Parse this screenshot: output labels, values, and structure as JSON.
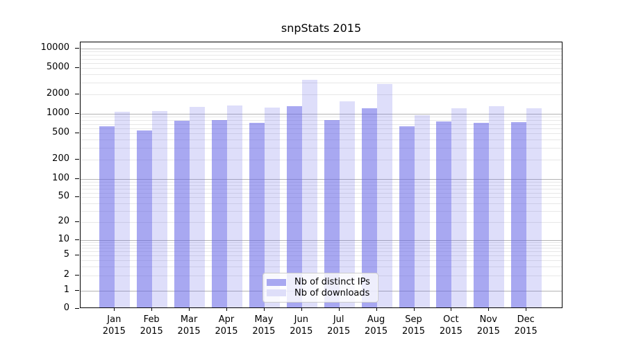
{
  "title": "snpStats 2015",
  "legend": {
    "items": [
      {
        "label": "Nb of distinct IPs",
        "series": "ips"
      },
      {
        "label": "Nb of downloads",
        "series": "downloads"
      }
    ]
  },
  "colors": {
    "ips_fill": "#6464E68F",
    "downloads_fill": "#6464E636",
    "ips_swatch": "#a8a8f1",
    "downloads_swatch": "#dedef9",
    "grid_minor": "#e7e7e7",
    "grid_major": "#b3b3b3",
    "axis": "#000000"
  },
  "y_axis": {
    "tick_labels": [
      "10000",
      "5000",
      "2000",
      "1000",
      "500",
      "200",
      "100",
      "50",
      "20",
      "10",
      "5",
      "2",
      "1",
      "0"
    ]
  },
  "x_axis": {
    "months": [
      {
        "month": "Jan",
        "year": "2015"
      },
      {
        "month": "Feb",
        "year": "2015"
      },
      {
        "month": "Mar",
        "year": "2015"
      },
      {
        "month": "Apr",
        "year": "2015"
      },
      {
        "month": "May",
        "year": "2015"
      },
      {
        "month": "Jun",
        "year": "2015"
      },
      {
        "month": "Jul",
        "year": "2015"
      },
      {
        "month": "Aug",
        "year": "2015"
      },
      {
        "month": "Sep",
        "year": "2015"
      },
      {
        "month": "Oct",
        "year": "2015"
      },
      {
        "month": "Nov",
        "year": "2015"
      },
      {
        "month": "Dec",
        "year": "2015"
      }
    ]
  },
  "chart_data": {
    "type": "bar",
    "title": "snpStats 2015",
    "categories": [
      "Jan 2015",
      "Feb 2015",
      "Mar 2015",
      "Apr 2015",
      "May 2015",
      "Jun 2015",
      "Jul 2015",
      "Aug 2015",
      "Sep 2015",
      "Oct 2015",
      "Nov 2015",
      "Dec 2015"
    ],
    "series": [
      {
        "name": "Nb of distinct IPs",
        "values": [
          640,
          560,
          780,
          800,
          730,
          1310,
          800,
          1220,
          650,
          760,
          730,
          740
        ]
      },
      {
        "name": "Nb of downloads",
        "values": [
          1070,
          1090,
          1280,
          1340,
          1260,
          3350,
          1560,
          2890,
          950,
          1220,
          1300,
          1230
        ]
      }
    ],
    "xlabel": "",
    "ylabel": "",
    "y_scale": "log",
    "ylim": [
      0,
      10000
    ],
    "y_ticks": [
      0,
      1,
      2,
      5,
      10,
      20,
      50,
      100,
      200,
      500,
      1000,
      2000,
      5000,
      10000
    ],
    "grid": true,
    "legend_position": "lower center"
  }
}
